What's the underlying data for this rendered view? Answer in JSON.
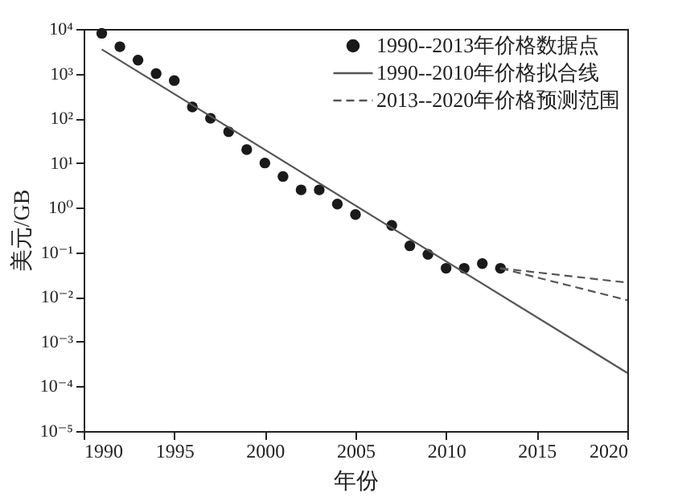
{
  "chart_data": {
    "type": "scatter",
    "xlabel": "年份",
    "ylabel": "美元/GB",
    "xlim": [
      1990,
      2020
    ],
    "xticks": [
      1990,
      1995,
      2000,
      2005,
      2010,
      2015,
      2020
    ],
    "ylim": [
      1e-05,
      10000
    ],
    "log": "y",
    "yticks": [
      {
        "value": 1e-05,
        "label": "10⁻⁵"
      },
      {
        "value": 0.0001,
        "label": "10⁻⁴"
      },
      {
        "value": 0.001,
        "label": "10⁻³"
      },
      {
        "value": 0.01,
        "label": "10⁻²"
      },
      {
        "value": 0.1,
        "label": "10⁻¹"
      },
      {
        "value": 1,
        "label": "10⁰"
      },
      {
        "value": 10,
        "label": "10¹"
      },
      {
        "value": 100,
        "label": "10²"
      },
      {
        "value": 1000,
        "label": "10³"
      },
      {
        "value": 10000,
        "label": "10⁴"
      }
    ],
    "grid": false,
    "legend": "top right",
    "series": [
      {
        "name": "1990--2013年价格数据点",
        "type": "scatter",
        "marker": "circle",
        "color": "#1a1a1a",
        "x": [
          1991,
          1992,
          1993,
          1994,
          1995,
          1996,
          1997,
          1998,
          1999,
          2000,
          2001,
          2002,
          2003,
          2004,
          2005,
          2007,
          2008,
          2009,
          2010,
          2011,
          2012,
          2013
        ],
        "values": [
          8000,
          4000,
          2000,
          1000,
          700,
          180,
          100,
          50,
          20,
          10,
          5,
          2.5,
          2.5,
          1.2,
          0.7,
          0.4,
          0.14,
          0.09,
          0.044,
          0.044,
          0.056,
          0.044
        ]
      },
      {
        "name": "1990--2010年价格拟合线",
        "type": "line",
        "line_style": "solid",
        "color": "#555555",
        "x": [
          1991,
          2020
        ],
        "values": [
          3500,
          0.0002
        ]
      },
      {
        "name": "2013--2020年价格预测范围",
        "type": "line",
        "line_style": "dashed",
        "color": "#555555",
        "x": [
          2013,
          2020
        ],
        "values": [
          0.044,
          0.021
        ]
      },
      {
        "type": "line",
        "line_style": "dashed",
        "color": "#555555",
        "x": [
          2013,
          2020
        ],
        "values": [
          0.044,
          0.0085
        ]
      }
    ]
  }
}
